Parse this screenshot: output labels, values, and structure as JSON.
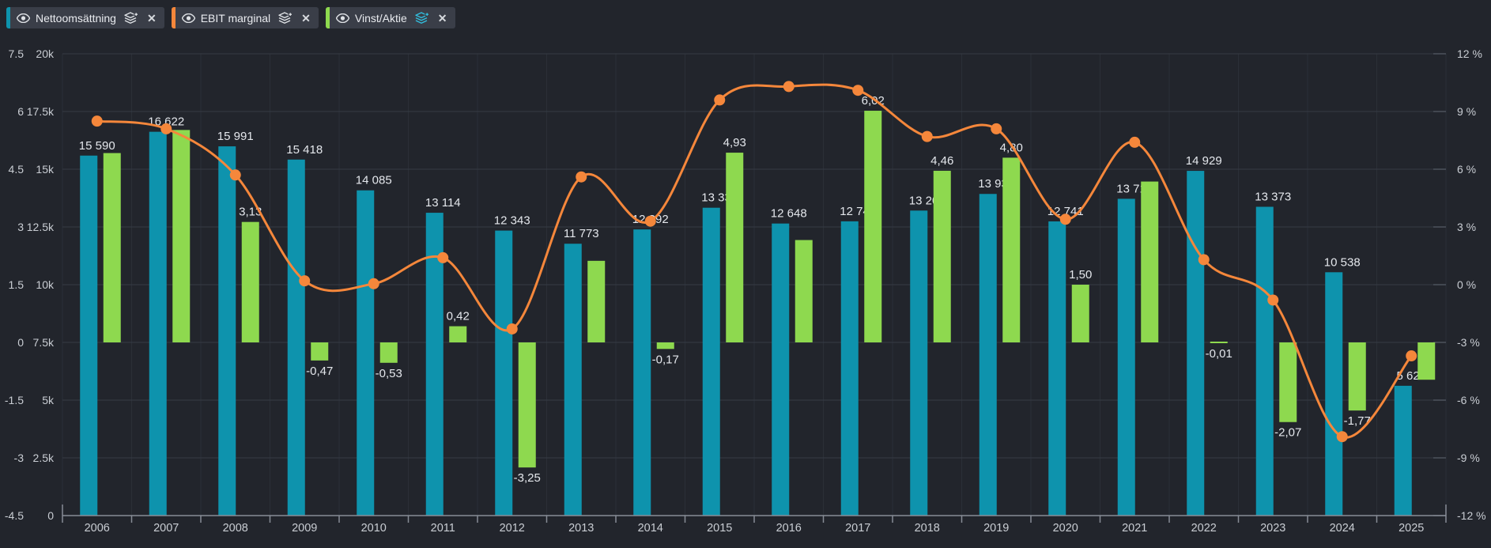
{
  "legend": {
    "items": [
      {
        "label": "Nettoomsättning",
        "color": "#0e93ad",
        "icon_color": "#dfe2e6"
      },
      {
        "label": "EBIT marginal",
        "color": "#f5873b",
        "icon_color": "#dfe2e6"
      },
      {
        "label": "Vinst/Aktie",
        "color": "#8ed94f",
        "icon_color": "#31bede"
      }
    ]
  },
  "chart_data": {
    "type": "combo-bar-line",
    "categories": [
      "2006",
      "2007",
      "2008",
      "2009",
      "2010",
      "2011",
      "2012",
      "2013",
      "2014",
      "2015",
      "2016",
      "2017",
      "2018",
      "2019",
      "2020",
      "2021",
      "2022",
      "2023",
      "2024",
      "2025"
    ],
    "series": [
      {
        "name": "Nettoomsättning",
        "type": "bar",
        "axis": "revenue",
        "color": "#0e93ad",
        "values": [
          15590,
          16622,
          15991,
          15418,
          14085,
          13114,
          12343,
          11773,
          12392,
          13332,
          12648,
          12744,
          13209,
          13930,
          12741,
          13719,
          14929,
          13373,
          10538,
          5621
        ],
        "labels": [
          "15 590",
          "16 622",
          "15 991",
          "15 418",
          "14 085",
          "13 114",
          "12 343",
          "11 773",
          "12 392",
          "13 332",
          "12 648",
          "12 744",
          "13 209",
          "13 930",
          "12 741",
          "13 719",
          "14 929",
          "13 373",
          "10 538",
          "5 621"
        ]
      },
      {
        "name": "Vinst/Aktie",
        "type": "bar",
        "axis": "eps",
        "color": "#8ed94f",
        "values": [
          4.92,
          5.52,
          3.13,
          -0.47,
          -0.53,
          0.42,
          -3.25,
          2.12,
          -0.17,
          4.93,
          2.66,
          6.02,
          4.46,
          4.8,
          1.5,
          4.18,
          -0.01,
          -2.07,
          -1.77,
          -0.97
        ],
        "labels": [
          null,
          null,
          "3,13",
          "-0,47",
          "-0,53",
          "0,42",
          "-3,25",
          null,
          "-0,17",
          "4,93",
          null,
          "6,02",
          "4,46",
          "4,80",
          "1,50",
          null,
          "-0,01",
          "-2,07",
          "-1,77",
          null
        ]
      },
      {
        "name": "EBIT marginal",
        "type": "line",
        "axis": "percent",
        "color": "#f5873b",
        "values": [
          8.5,
          8.1,
          5.7,
          0.2,
          0.05,
          1.4,
          -2.3,
          5.6,
          3.3,
          9.6,
          10.3,
          10.1,
          7.7,
          8.1,
          3.4,
          7.4,
          1.3,
          -0.8,
          -7.9,
          -3.7
        ]
      }
    ],
    "axes": {
      "eps": {
        "min": -4.5,
        "max": 7.5,
        "ticks": [
          "7.5",
          "6",
          "4.5",
          "3",
          "1.5",
          "0",
          "-1.5",
          "-3",
          "-4.5"
        ]
      },
      "revenue": {
        "min": 0,
        "max": 20000,
        "ticks": [
          "20k",
          "17.5k",
          "15k",
          "12.5k",
          "10k",
          "7.5k",
          "5k",
          "2.5k",
          "0"
        ]
      },
      "percent": {
        "min": -12,
        "max": 12,
        "ticks": [
          "12 %",
          "9 %",
          "6 %",
          "3 %",
          "0 %",
          "-3 %",
          "-6 %",
          "-9 %",
          "-12 %"
        ]
      }
    },
    "grid": true,
    "legend_position": "top-left",
    "colors": {
      "background": "#22252c",
      "gridline": "#363b44",
      "year_divider": "#2b2f37",
      "axis_text": "#c9cdd3",
      "value_label": "#e4e7ec",
      "baseline": "#878d96",
      "right_tick": "#4d535d"
    }
  }
}
